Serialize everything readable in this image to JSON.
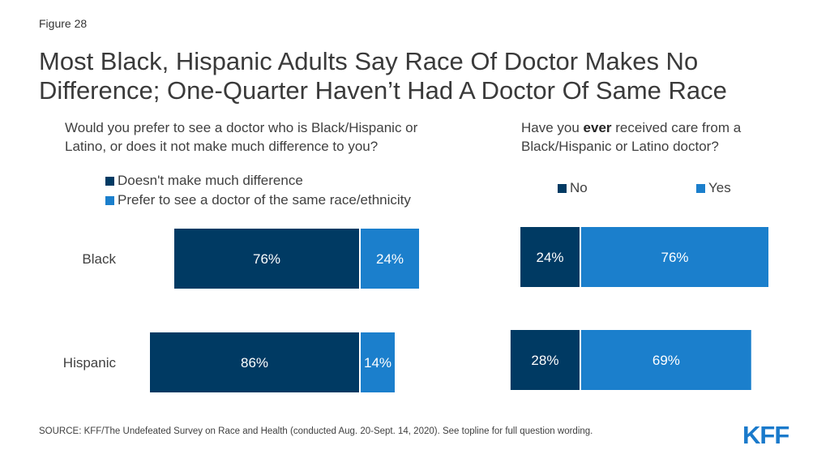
{
  "figure_label": "Figure 28",
  "title": "Most Black, Hispanic Adults Say Race Of Doctor Makes No Difference; One-Quarter Haven’t Had A Doctor Of Same Race",
  "source": "SOURCE: KFF/The Undefeated Survey on Race and Health (conducted Aug. 20-Sept. 14, 2020). See topline for full question wording.",
  "logo": "KFF",
  "colors": {
    "dark": "#003a63",
    "light": "#1b7fcc",
    "text": "#404040"
  },
  "chart_data": [
    {
      "type": "bar",
      "orientation": "horizontal",
      "stacked": true,
      "question": "Would you prefer to see a doctor who is Black/Hispanic or Latino, or does it not make much difference to you?",
      "categories": [
        "Black",
        "Hispanic"
      ],
      "series": [
        {
          "name": "Doesn't make much difference",
          "values": [
            76,
            86
          ],
          "labels": [
            "76%",
            "86%"
          ],
          "color": "#003a63"
        },
        {
          "name": "Prefer to see a doctor of the same race/ethnicity",
          "values": [
            24,
            14
          ],
          "labels": [
            "24%",
            "14%"
          ],
          "color": "#1b7fcc"
        }
      ],
      "legend_position": "top"
    },
    {
      "type": "bar",
      "orientation": "horizontal",
      "stacked": true,
      "question_parts": [
        "Have you ",
        "ever",
        " received care from a Black/Hispanic or Latino doctor?"
      ],
      "categories": [
        "Black",
        "Hispanic"
      ],
      "series": [
        {
          "name": "No",
          "values": [
            24,
            28
          ],
          "labels": [
            "24%",
            "28%"
          ],
          "color": "#003a63"
        },
        {
          "name": "Yes",
          "values": [
            76,
            69
          ],
          "labels": [
            "76%",
            "69%"
          ],
          "color": "#1b7fcc"
        }
      ],
      "legend_position": "top"
    }
  ]
}
